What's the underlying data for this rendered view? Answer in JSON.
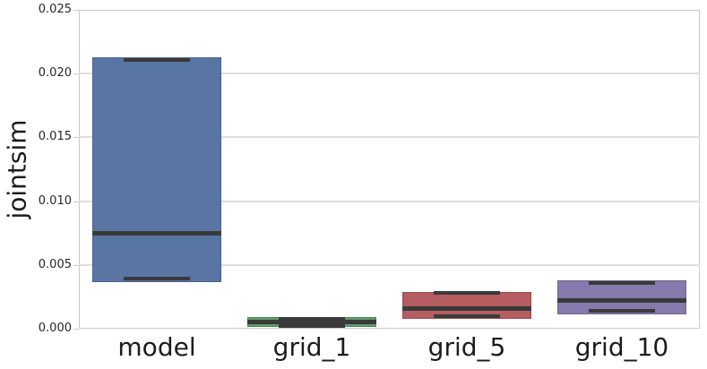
{
  "chart_data": {
    "type": "box",
    "title": "",
    "xlabel": "",
    "ylabel": "jointsim",
    "categories": [
      "model",
      "grid_1",
      "grid_5",
      "grid_10"
    ],
    "ylim": [
      0,
      0.025
    ],
    "yticks": [
      0,
      0.005,
      0.01,
      0.015,
      0.02,
      0.025
    ],
    "ytick_labels": [
      "0.000",
      "0.005",
      "0.010",
      "0.015",
      "0.020",
      "0.025"
    ],
    "grid": "horizontal",
    "legend": "none",
    "series": [
      {
        "name": "model",
        "whislo": 0.0039,
        "q1": 0.0037,
        "med": 0.0075,
        "q3": 0.0213,
        "whishi": 0.0211,
        "color": "#5975A4",
        "edge": "#49618A"
      },
      {
        "name": "grid_1",
        "whislo": 0.0002,
        "q1": 0.0001,
        "med": 0.0005,
        "q3": 0.0009,
        "whishi": 0.0008,
        "color": "#5F9E6E",
        "edge": "#4E8159"
      },
      {
        "name": "grid_5",
        "whislo": 0.001,
        "q1": 0.0008,
        "med": 0.0016,
        "q3": 0.0029,
        "whishi": 0.0028,
        "color": "#B55D60",
        "edge": "#954D50"
      },
      {
        "name": "grid_10",
        "whislo": 0.0014,
        "q1": 0.0011,
        "med": 0.0022,
        "q3": 0.0038,
        "whishi": 0.0036,
        "color": "#857AAB",
        "edge": "#6E648D"
      }
    ],
    "colors": {
      "line": "#3A3A3A",
      "grid": "#DEDEDE",
      "spine": "#C9C9C9",
      "tick_label": "#262626",
      "axis_label": "#1C1C1C",
      "background": "#FFFFFF"
    }
  }
}
